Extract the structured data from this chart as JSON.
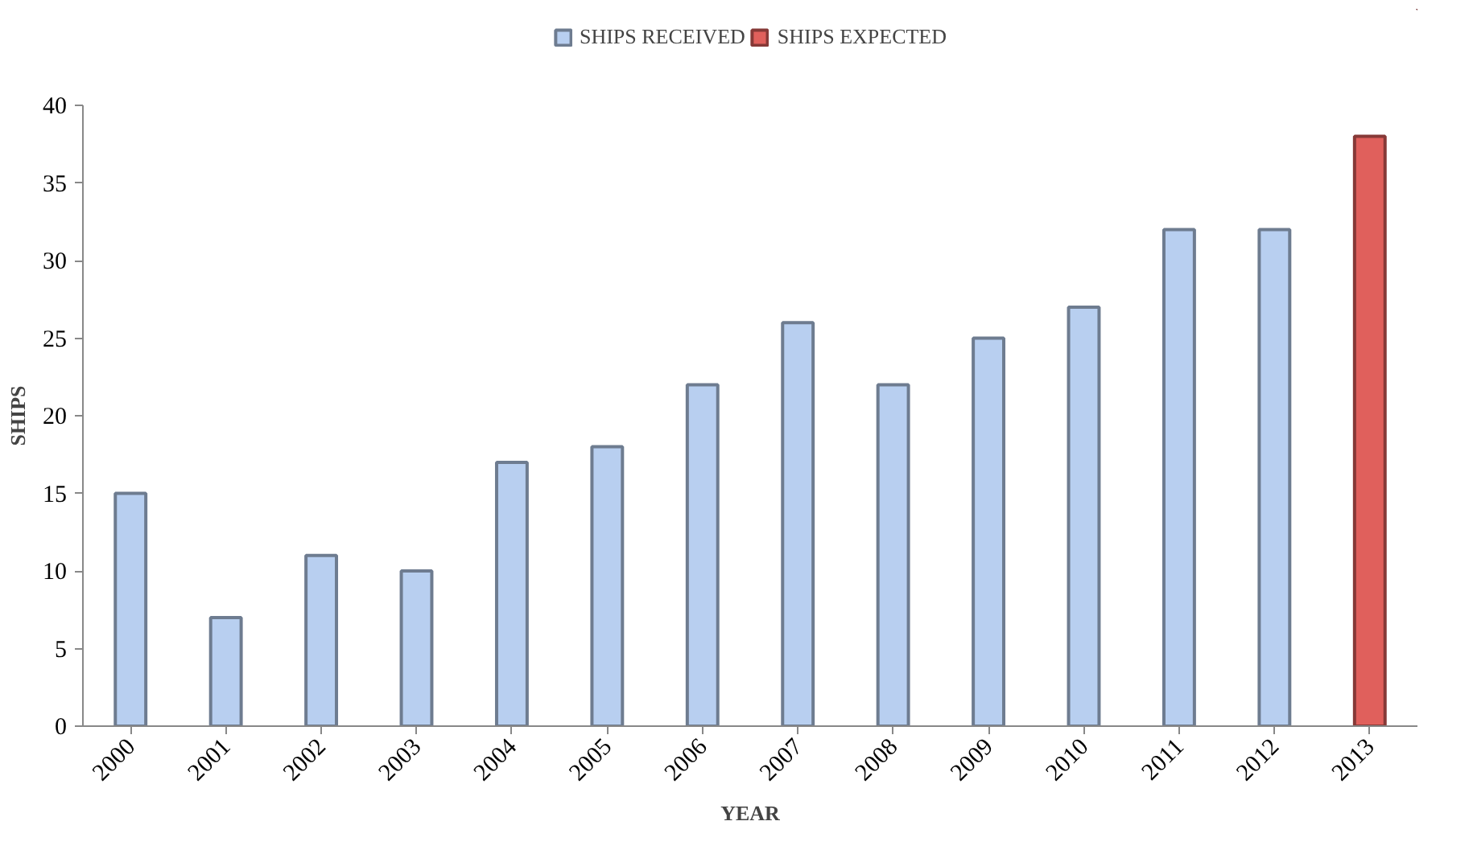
{
  "chart_data": {
    "type": "bar",
    "xlabel": "YEAR",
    "ylabel": "SHIPS",
    "categories": [
      "2000",
      "2001",
      "2002",
      "2003",
      "2004",
      "2005",
      "2006",
      "2007",
      "2008",
      "2009",
      "2010",
      "2011",
      "2012",
      "2013"
    ],
    "series": [
      {
        "name": "SHIPS RECEIVED",
        "color": "#b8cff0",
        "values": [
          15,
          7,
          11,
          10,
          17,
          18,
          22,
          26,
          22,
          25,
          27,
          32,
          32,
          null
        ]
      },
      {
        "name": "SHIPS EXPECTED",
        "color": "#e0605c",
        "values": [
          null,
          null,
          null,
          null,
          null,
          null,
          null,
          null,
          null,
          null,
          null,
          null,
          null,
          38
        ]
      }
    ],
    "ylim": [
      0,
      40
    ],
    "yticks": [
      0,
      5,
      10,
      15,
      20,
      25,
      30,
      35,
      40
    ],
    "grid": false,
    "legend": "top"
  }
}
